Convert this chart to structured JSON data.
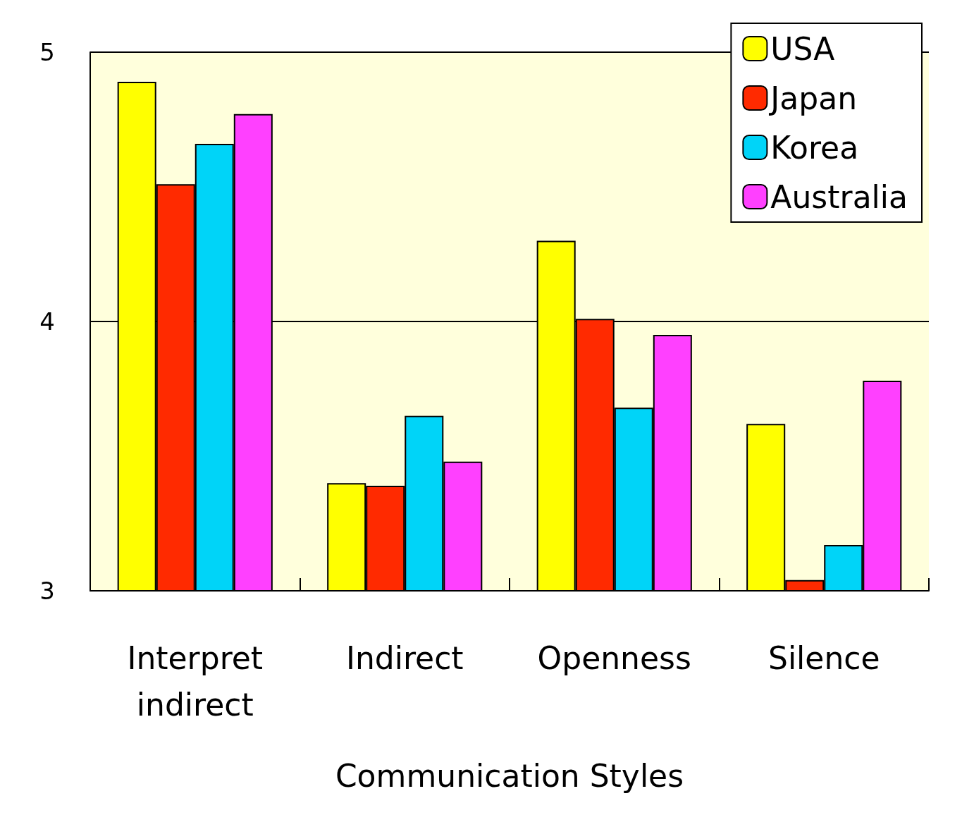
{
  "chart_data": {
    "type": "bar",
    "xlabel": "Communication Styles",
    "categories": [
      "Interpret\nindirect",
      "Indirect",
      "Openness",
      "Silence"
    ],
    "series": [
      {
        "name": "USA",
        "color": "#ffff00",
        "values": [
          4.89,
          3.4,
          4.3,
          3.62
        ]
      },
      {
        "name": "Japan",
        "color": "#ff2a00",
        "values": [
          4.51,
          3.39,
          4.01,
          3.04
        ]
      },
      {
        "name": "Korea",
        "color": "#00d4f8",
        "values": [
          4.66,
          3.65,
          3.68,
          3.17
        ]
      },
      {
        "name": "Australia",
        "color": "#ff40ff",
        "values": [
          4.77,
          3.48,
          3.95,
          3.78
        ]
      }
    ],
    "ylim": [
      3,
      5
    ],
    "yticks": [
      3,
      4,
      5
    ],
    "grid": "y",
    "legend": "top right"
  }
}
